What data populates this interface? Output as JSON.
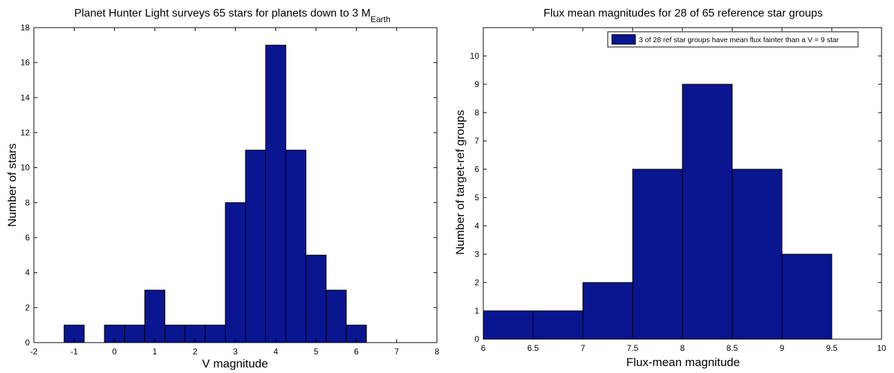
{
  "chart_data": [
    {
      "type": "bar",
      "title": "Planet Hunter Light surveys 65 stars for planets down to 3 M",
      "title_subscript": "Earth",
      "xlabel": "V magnitude",
      "ylabel": "Number of stars",
      "xlim": [
        -2,
        8
      ],
      "ylim": [
        0,
        18
      ],
      "xticks": [
        "-2",
        "-1",
        "0",
        "1",
        "2",
        "3",
        "4",
        "5",
        "6",
        "7",
        "8"
      ],
      "yticks": [
        "0",
        "2",
        "4",
        "6",
        "8",
        "10",
        "12",
        "14",
        "16",
        "18"
      ],
      "bin_width": 0.5,
      "bars": [
        {
          "x": -1.0,
          "value": 1
        },
        {
          "x": 0.0,
          "value": 1
        },
        {
          "x": 0.5,
          "value": 1
        },
        {
          "x": 1.0,
          "value": 3
        },
        {
          "x": 1.5,
          "value": 1
        },
        {
          "x": 2.0,
          "value": 1
        },
        {
          "x": 2.5,
          "value": 1
        },
        {
          "x": 3.0,
          "value": 8
        },
        {
          "x": 3.5,
          "value": 11
        },
        {
          "x": 4.0,
          "value": 17
        },
        {
          "x": 4.5,
          "value": 11
        },
        {
          "x": 5.0,
          "value": 5
        },
        {
          "x": 5.5,
          "value": 3
        },
        {
          "x": 6.0,
          "value": 1
        }
      ],
      "bar_color": "#0a1590",
      "grid": false,
      "legend": null
    },
    {
      "type": "bar",
      "title": "Flux mean magnitudes for 28 of 65 reference star groups",
      "xlabel": "Flux-mean magnitude",
      "ylabel": "Number of target-ref groups",
      "xlim": [
        6,
        10
      ],
      "ylim": [
        0,
        11
      ],
      "xticks": [
        "6",
        "6.5",
        "7",
        "7.5",
        "8",
        "8.5",
        "9",
        "9.5",
        "10"
      ],
      "yticks": [
        "0",
        "1",
        "2",
        "3",
        "4",
        "5",
        "6",
        "7",
        "8",
        "9",
        "10"
      ],
      "bin_width": 0.5,
      "bars": [
        {
          "x": 6.25,
          "value": 1
        },
        {
          "x": 6.75,
          "value": 1
        },
        {
          "x": 7.25,
          "value": 2
        },
        {
          "x": 7.75,
          "value": 6
        },
        {
          "x": 8.25,
          "value": 9
        },
        {
          "x": 8.75,
          "value": 6
        },
        {
          "x": 9.25,
          "value": 3
        }
      ],
      "bar_color": "#0a1590",
      "grid": false,
      "legend": {
        "placement": "top-right",
        "entries": [
          "3 of 28 ref star groups have mean flux fainter than a V = 9 star"
        ]
      }
    }
  ]
}
